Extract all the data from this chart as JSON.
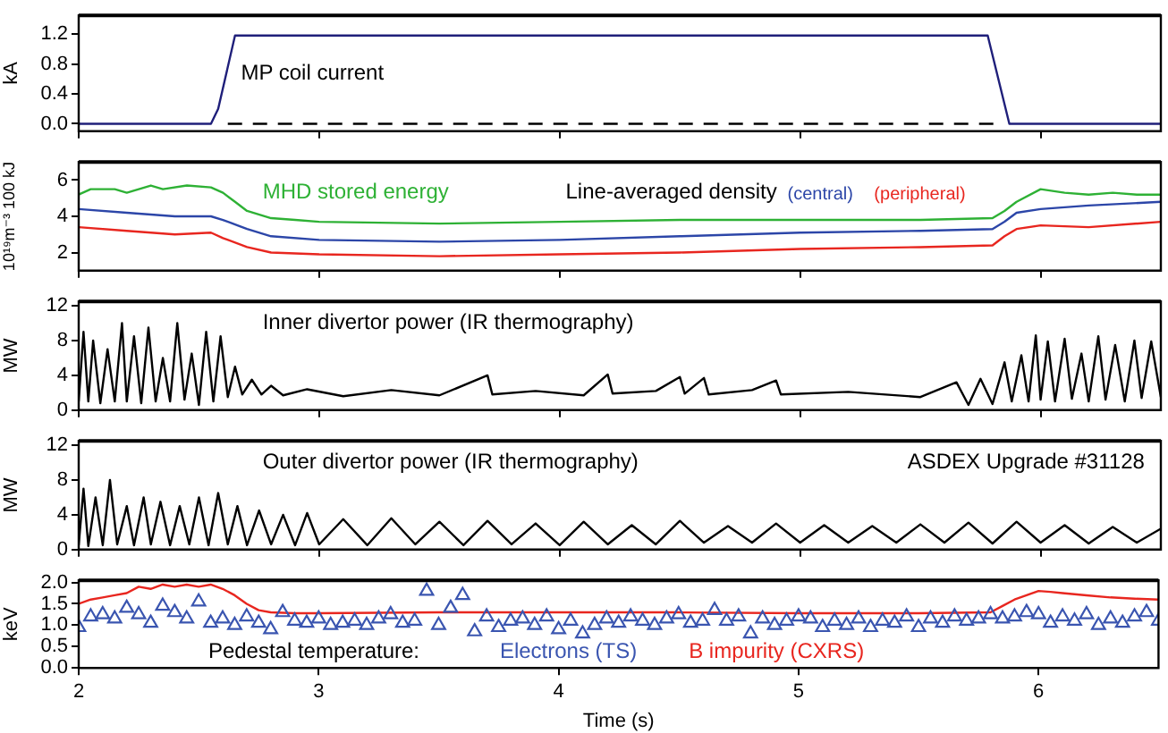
{
  "chart_data": [
    {
      "type": "line",
      "title": "MP coil current",
      "ylabel": "kA",
      "xlim": [
        2,
        6.5
      ],
      "xticks": [
        2,
        3,
        4,
        5,
        6
      ],
      "ylim": [
        -0.1,
        1.45
      ],
      "yticks": [
        {
          "value": 0,
          "label": "0.0"
        },
        {
          "value": 0.4,
          "label": "0.4"
        },
        {
          "value": 0.8,
          "label": "0.8"
        },
        {
          "value": 1.2,
          "label": "1.2"
        }
      ],
      "tick_labels": "y",
      "grid": false,
      "legend": false,
      "marker": "none",
      "series": [
        {
          "color": "#1f1f7a",
          "x": [
            2,
            2.55,
            2.58,
            2.65,
            5.78,
            5.87,
            6.5
          ],
          "values": [
            0,
            0,
            0.2,
            1.18,
            1.18,
            0,
            0
          ]
        },
        {
          "color": "#000000",
          "line_style": "dashed",
          "x": [
            2.62,
            5.82
          ],
          "values": [
            0,
            0
          ]
        }
      ]
    },
    {
      "type": "line",
      "title": "Line-averaged density",
      "ylabel": "10¹⁹m⁻³ 100 kJ",
      "xlim": [
        2,
        6.5
      ],
      "xticks": [
        2,
        3,
        4,
        5,
        6
      ],
      "ylim": [
        1,
        7
      ],
      "yticks": [
        2,
        4,
        6
      ],
      "tick_labels": "y",
      "grid": false,
      "legend": false,
      "marker": "none",
      "series": [
        {
          "name": "MHD stored energy",
          "color": "#2eb135",
          "x": [
            2,
            2.05,
            2.15,
            2.2,
            2.3,
            2.35,
            2.45,
            2.55,
            2.6,
            2.65,
            2.7,
            2.8,
            2.9,
            3,
            3.5,
            4,
            4.5,
            5,
            5.5,
            5.8,
            5.85,
            5.9,
            6,
            6.1,
            6.2,
            6.3,
            6.4,
            6.5
          ],
          "values": [
            5.2,
            5.5,
            5.5,
            5.3,
            5.7,
            5.5,
            5.7,
            5.6,
            5.3,
            4.8,
            4.3,
            3.9,
            3.8,
            3.7,
            3.6,
            3.7,
            3.8,
            3.8,
            3.8,
            3.9,
            4.3,
            4.8,
            5.5,
            5.3,
            5.2,
            5.3,
            5.2,
            5.2
          ]
        },
        {
          "name": "(central)",
          "color": "#2c46a8",
          "x": [
            2,
            2.2,
            2.4,
            2.55,
            2.6,
            2.7,
            2.8,
            3,
            3.5,
            4,
            4.5,
            5,
            5.5,
            5.8,
            5.85,
            5.9,
            6,
            6.2,
            6.5
          ],
          "values": [
            4.4,
            4.2,
            4,
            4,
            3.8,
            3.3,
            2.9,
            2.7,
            2.6,
            2.7,
            2.9,
            3.1,
            3.2,
            3.3,
            3.7,
            4.2,
            4.4,
            4.6,
            4.8
          ]
        },
        {
          "name": "(peripheral)",
          "color": "#e8261f",
          "x": [
            2,
            2.2,
            2.4,
            2.55,
            2.6,
            2.7,
            2.8,
            3,
            3.5,
            4,
            4.5,
            5,
            5.5,
            5.8,
            5.85,
            5.9,
            6,
            6.2,
            6.5
          ],
          "values": [
            3.4,
            3.2,
            3,
            3.1,
            2.8,
            2.3,
            2,
            1.9,
            1.8,
            1.9,
            2,
            2.2,
            2.3,
            2.4,
            2.9,
            3.3,
            3.5,
            3.4,
            3.7
          ]
        }
      ]
    },
    {
      "type": "line",
      "title": "Inner divertor power (IR thermography)",
      "ylabel": "MW",
      "xlim": [
        2,
        6.5
      ],
      "xticks": [
        2,
        3,
        4,
        5,
        6
      ],
      "ylim": [
        0,
        12.5
      ],
      "yticks": [
        0,
        4,
        8,
        12
      ],
      "tick_labels": "y",
      "grid": false,
      "legend": false,
      "marker": "none",
      "series": [
        {
          "color": "#000000",
          "x": [
            2,
            2.02,
            2.04,
            2.06,
            2.09,
            2.12,
            2.15,
            2.18,
            2.2,
            2.23,
            2.26,
            2.29,
            2.32,
            2.35,
            2.38,
            2.41,
            2.44,
            2.47,
            2.5,
            2.53,
            2.56,
            2.59,
            2.62,
            2.65,
            2.68,
            2.72,
            2.76,
            2.8,
            2.85,
            2.95,
            3.1,
            3.3,
            3.5,
            3.7,
            3.72,
            3.9,
            4.1,
            4.2,
            4.22,
            4.4,
            4.5,
            4.52,
            4.6,
            4.62,
            4.8,
            4.9,
            4.92,
            5.2,
            5.5,
            5.65,
            5.7,
            5.75,
            5.8,
            5.85,
            5.88,
            5.92,
            5.95,
            5.98,
            6,
            6.03,
            6.06,
            6.1,
            6.13,
            6.17,
            6.2,
            6.24,
            6.27,
            6.31,
            6.35,
            6.39,
            6.42,
            6.46,
            6.5
          ],
          "values": [
            1,
            9,
            1,
            8,
            0.8,
            7,
            1,
            10,
            1,
            8.5,
            0.8,
            9.5,
            1,
            6,
            1,
            10,
            1.2,
            6.5,
            0.6,
            9,
            1,
            8.5,
            1.5,
            5,
            1.8,
            3.5,
            1.8,
            2.8,
            1.7,
            2.4,
            1.6,
            2.3,
            1.7,
            4,
            1.8,
            2.2,
            1.7,
            4.1,
            1.9,
            2.2,
            3.8,
            1.9,
            3.7,
            1.8,
            2.3,
            3.4,
            1.8,
            2.1,
            1.5,
            3.2,
            0.6,
            3.6,
            0.7,
            5.5,
            1,
            6.3,
            1,
            8.6,
            1.2,
            7.9,
            1,
            8.2,
            1.3,
            6.5,
            1,
            8.5,
            1.2,
            7.5,
            1,
            8,
            1.4,
            7.9,
            1.5
          ]
        }
      ]
    },
    {
      "type": "line",
      "title": "Outer divertor power (IR thermography)",
      "annotations": [
        "ASDEX Upgrade #31128"
      ],
      "ylabel": "MW",
      "xlim": [
        2,
        6.5
      ],
      "xticks": [
        2,
        3,
        4,
        5,
        6
      ],
      "ylim": [
        0,
        12.5
      ],
      "yticks": [
        0,
        4,
        8,
        12
      ],
      "tick_labels": "y",
      "grid": false,
      "legend": false,
      "marker": "none",
      "series": [
        {
          "color": "#000000",
          "x": [
            2,
            2.02,
            2.04,
            2.07,
            2.1,
            2.13,
            2.16,
            2.2,
            2.23,
            2.27,
            2.3,
            2.34,
            2.38,
            2.42,
            2.46,
            2.5,
            2.54,
            2.58,
            2.62,
            2.66,
            2.7,
            2.75,
            2.8,
            2.85,
            2.9,
            2.95,
            3,
            3.1,
            3.2,
            3.3,
            3.4,
            3.5,
            3.6,
            3.7,
            3.8,
            3.9,
            4,
            4.1,
            4.2,
            4.3,
            4.4,
            4.5,
            4.6,
            4.7,
            4.8,
            4.9,
            5,
            5.1,
            5.2,
            5.3,
            5.4,
            5.5,
            5.6,
            5.7,
            5.8,
            5.9,
            6,
            6.1,
            6.2,
            6.3,
            6.4,
            6.5
          ],
          "values": [
            0.5,
            7,
            0.4,
            6,
            0.5,
            8,
            0.6,
            5,
            0.5,
            6,
            0.6,
            5.5,
            0.5,
            5,
            0.6,
            6,
            0.5,
            6.5,
            0.6,
            5,
            0.5,
            4.5,
            0.6,
            4,
            0.5,
            4.2,
            0.6,
            3.5,
            0.5,
            3.6,
            0.6,
            3.2,
            0.5,
            3.3,
            0.6,
            3,
            0.5,
            3.2,
            0.6,
            2.8,
            0.6,
            3.3,
            0.8,
            2.7,
            0.8,
            3,
            0.8,
            2.8,
            0.8,
            2.7,
            0.8,
            2.9,
            0.8,
            3.1,
            0.7,
            3.2,
            0.8,
            2.8,
            0.7,
            2.6,
            0.8,
            2.4
          ]
        }
      ]
    },
    {
      "type": "line",
      "title": "Pedestal temperature:",
      "xlabel": "Time (s)",
      "ylabel": "keV",
      "xlim": [
        2,
        6.5
      ],
      "xticks": [
        2,
        3,
        4,
        5,
        6
      ],
      "ylim": [
        0,
        2.05
      ],
      "yticks": [
        {
          "value": 0,
          "label": "0.0"
        },
        {
          "value": 0.5,
          "label": "0.5"
        },
        {
          "value": 1,
          "label": "1.0"
        },
        {
          "value": 1.5,
          "label": "1.5"
        },
        {
          "value": 2,
          "label": "2.0"
        }
      ],
      "grid": false,
      "legend": false,
      "series": [
        {
          "name": "Electrons (TS)",
          "type": "scatter",
          "marker": "triangle",
          "color": "#3a55b0",
          "x": [
            2,
            2.05,
            2.1,
            2.15,
            2.2,
            2.25,
            2.3,
            2.35,
            2.4,
            2.45,
            2.5,
            2.55,
            2.6,
            2.65,
            2.7,
            2.75,
            2.8,
            2.85,
            2.9,
            2.95,
            3,
            3.05,
            3.1,
            3.15,
            3.2,
            3.25,
            3.3,
            3.35,
            3.4,
            3.45,
            3.5,
            3.55,
            3.6,
            3.65,
            3.7,
            3.75,
            3.8,
            3.85,
            3.9,
            3.95,
            4,
            4.05,
            4.1,
            4.15,
            4.2,
            4.25,
            4.3,
            4.35,
            4.4,
            4.45,
            4.5,
            4.55,
            4.6,
            4.65,
            4.7,
            4.75,
            4.8,
            4.85,
            4.9,
            4.95,
            5,
            5.05,
            5.1,
            5.15,
            5.2,
            5.25,
            5.3,
            5.35,
            5.4,
            5.45,
            5.5,
            5.55,
            5.6,
            5.65,
            5.7,
            5.75,
            5.8,
            5.85,
            5.9,
            5.95,
            6,
            6.05,
            6.1,
            6.15,
            6.2,
            6.25,
            6.3,
            6.35,
            6.4,
            6.45,
            6.5
          ],
          "values": [
            0.95,
            1.2,
            1.25,
            1.15,
            1.4,
            1.25,
            1.05,
            1.45,
            1.3,
            1.15,
            1.55,
            1.05,
            1.15,
            1,
            1.2,
            1.05,
            0.9,
            1.3,
            1.1,
            1.05,
            1.15,
            1,
            1.05,
            1.1,
            1,
            1.15,
            1.25,
            1.05,
            1.1,
            1.8,
            1,
            1.4,
            1.7,
            0.85,
            1.2,
            0.95,
            1.1,
            1.15,
            1,
            1.2,
            0.9,
            1.1,
            0.8,
            1,
            1.15,
            1.05,
            1.2,
            1.1,
            1,
            1.15,
            1.25,
            1.05,
            1.1,
            1.35,
            1.1,
            1.2,
            0.8,
            1.15,
            1,
            1.1,
            1.2,
            1.15,
            0.95,
            1.1,
            1,
            1.15,
            0.95,
            1.1,
            1.05,
            1.2,
            0.95,
            1.15,
            1.05,
            1.2,
            1.1,
            1.15,
            1.25,
            1.15,
            1.2,
            1.3,
            1.25,
            1.05,
            1.2,
            1.1,
            1.25,
            1,
            1.15,
            1.05,
            1.2,
            1.3,
            1.1
          ]
        },
        {
          "name": "B impurity (CXRS)",
          "type": "line",
          "marker": "none",
          "color": "#e8261f",
          "x": [
            2,
            2.05,
            2.1,
            2.15,
            2.2,
            2.25,
            2.3,
            2.35,
            2.4,
            2.45,
            2.5,
            2.55,
            2.6,
            2.65,
            2.7,
            2.75,
            2.8,
            2.9,
            3,
            3.5,
            4,
            4.5,
            5,
            5.5,
            5.8,
            5.85,
            5.9,
            5.95,
            6,
            6.05,
            6.1,
            6.2,
            6.3,
            6.4,
            6.5
          ],
          "values": [
            1.5,
            1.6,
            1.65,
            1.7,
            1.75,
            1.9,
            1.85,
            1.95,
            1.9,
            1.95,
            1.9,
            1.95,
            1.85,
            1.7,
            1.5,
            1.35,
            1.3,
            1.28,
            1.28,
            1.3,
            1.3,
            1.3,
            1.28,
            1.28,
            1.3,
            1.45,
            1.6,
            1.7,
            1.8,
            1.78,
            1.75,
            1.7,
            1.65,
            1.62,
            1.6
          ]
        }
      ]
    }
  ]
}
